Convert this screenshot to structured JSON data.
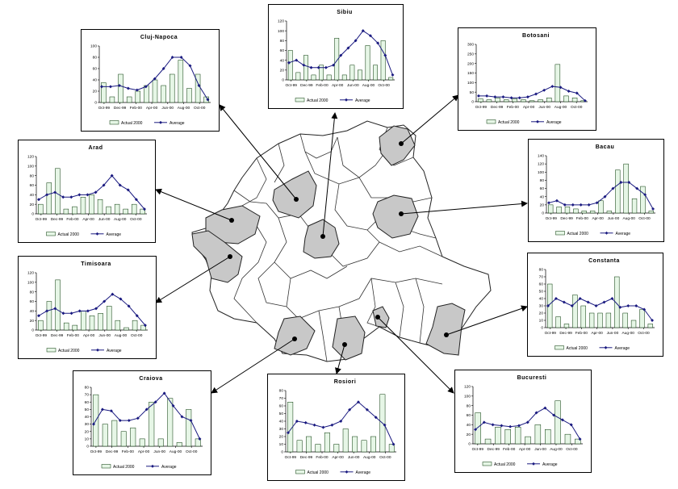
{
  "figure": {
    "legend_bar_label": "Actual 2000",
    "legend_line_label": "Average",
    "bar_color": "#e6f6e6",
    "bar_stroke": "#003300",
    "line_color": "#1a1a80",
    "region_fill": "#c8c8c8",
    "map_stroke": "#222222"
  },
  "chart_data": [
    {
      "id": "sibiu",
      "type": "bar",
      "title": "Sibiu",
      "x_tick_labels": [
        "Oct-99",
        "Dec-99",
        "Feb-00",
        "Apr-00",
        "Jun-00",
        "Aug-00",
        "Oct-00"
      ],
      "ylim": [
        0,
        120
      ],
      "y_ticks": [
        0,
        20,
        40,
        60,
        80,
        100,
        120
      ],
      "series": [
        {
          "name": "Actual 2000",
          "kind": "bar",
          "values": [
            60,
            15,
            50,
            10,
            30,
            10,
            85,
            10,
            30,
            20,
            70,
            30,
            80,
            5
          ]
        },
        {
          "name": "Average",
          "kind": "line",
          "values": [
            35,
            40,
            30,
            25,
            25,
            25,
            30,
            50,
            65,
            80,
            100,
            90,
            75,
            50,
            10
          ]
        }
      ]
    },
    {
      "id": "cluj-napoca",
      "type": "bar",
      "title": "Cluj-Napoca",
      "x_tick_labels": [
        "Oct-99",
        "Dec-99",
        "Feb-00",
        "Apr-00",
        "Jun-00",
        "Aug-00",
        "Oct-00"
      ],
      "ylim": [
        0,
        100
      ],
      "y_ticks": [
        0,
        20,
        40,
        60,
        80,
        100
      ],
      "series": [
        {
          "name": "Actual 2000",
          "kind": "bar",
          "values": [
            35,
            10,
            50,
            10,
            20,
            30,
            40,
            30,
            50,
            75,
            25,
            50,
            10
          ]
        },
        {
          "name": "Average",
          "kind": "line",
          "values": [
            28,
            28,
            30,
            25,
            22,
            28,
            42,
            60,
            80,
            80,
            65,
            30,
            5
          ]
        }
      ]
    },
    {
      "id": "botosani",
      "type": "bar",
      "title": "Botosani",
      "x_tick_labels": [
        "Oct-99",
        "Dec-99",
        "Feb-00",
        "Apr-00",
        "Jun-00",
        "Aug-00",
        "Oct-00"
      ],
      "ylim": [
        0,
        300
      ],
      "y_ticks": [
        0,
        50,
        100,
        150,
        200,
        250,
        300
      ],
      "series": [
        {
          "name": "Actual 2000",
          "kind": "bar",
          "values": [
            15,
            10,
            20,
            10,
            15,
            10,
            5,
            10,
            20,
            195,
            30,
            20,
            5
          ]
        },
        {
          "name": "Average",
          "kind": "line",
          "values": [
            30,
            30,
            25,
            25,
            20,
            20,
            25,
            40,
            60,
            80,
            75,
            55,
            45,
            5
          ]
        }
      ]
    },
    {
      "id": "arad",
      "type": "bar",
      "title": "Arad",
      "x_tick_labels": [
        "Oct-99",
        "Dec-99",
        "Feb-00",
        "Apr-00",
        "Jun-00",
        "Aug-00",
        "Oct-00"
      ],
      "ylim": [
        0,
        120
      ],
      "y_ticks": [
        0,
        20,
        40,
        60,
        80,
        100,
        120
      ],
      "series": [
        {
          "name": "Actual 2000",
          "kind": "bar",
          "values": [
            20,
            65,
            95,
            10,
            15,
            35,
            40,
            30,
            15,
            20,
            10,
            20,
            10
          ]
        },
        {
          "name": "Average",
          "kind": "line",
          "values": [
            30,
            40,
            45,
            35,
            35,
            40,
            40,
            45,
            60,
            80,
            60,
            50,
            30,
            10
          ]
        }
      ]
    },
    {
      "id": "bacau",
      "type": "bar",
      "title": "Bacau",
      "x_tick_labels": [
        "Oct-99",
        "Dec-99",
        "Feb-00",
        "Apr-00",
        "Jun-00",
        "Aug-00",
        "Oct-00"
      ],
      "ylim": [
        0,
        140
      ],
      "y_ticks": [
        0,
        20,
        40,
        60,
        80,
        100,
        120,
        140
      ],
      "series": [
        {
          "name": "Actual 2000",
          "kind": "bar",
          "values": [
            20,
            15,
            15,
            10,
            5,
            5,
            30,
            5,
            105,
            120,
            35,
            65,
            5
          ]
        },
        {
          "name": "Average",
          "kind": "line",
          "values": [
            25,
            30,
            20,
            20,
            20,
            20,
            25,
            40,
            60,
            75,
            75,
            60,
            45,
            10
          ]
        }
      ]
    },
    {
      "id": "timisoara",
      "type": "bar",
      "title": "Timisoara",
      "x_tick_labels": [
        "Oct-99",
        "Dec-99",
        "Feb-00",
        "Apr-00",
        "Jun-00",
        "Aug-00",
        "Oct-00"
      ],
      "ylim": [
        0,
        120
      ],
      "y_ticks": [
        0,
        20,
        40,
        60,
        80,
        100,
        120
      ],
      "series": [
        {
          "name": "Actual 2000",
          "kind": "bar",
          "values": [
            20,
            60,
            105,
            15,
            10,
            40,
            30,
            35,
            50,
            20,
            5,
            20,
            10
          ]
        },
        {
          "name": "Average",
          "kind": "line",
          "values": [
            30,
            40,
            45,
            35,
            35,
            40,
            40,
            45,
            60,
            75,
            65,
            50,
            30,
            10
          ]
        }
      ]
    },
    {
      "id": "constanta",
      "type": "bar",
      "title": "Constanta",
      "x_tick_labels": [
        "Oct-99",
        "Dec-99",
        "Feb-00",
        "Apr-00",
        "Jun-00",
        "Aug-00",
        "Oct-00"
      ],
      "ylim": [
        0,
        80
      ],
      "y_ticks": [
        0,
        10,
        20,
        30,
        40,
        50,
        60,
        70,
        80
      ],
      "series": [
        {
          "name": "Actual 2000",
          "kind": "bar",
          "values": [
            60,
            15,
            5,
            45,
            30,
            20,
            20,
            20,
            70,
            20,
            10,
            25,
            5
          ]
        },
        {
          "name": "Average",
          "kind": "line",
          "values": [
            30,
            40,
            35,
            30,
            40,
            35,
            30,
            35,
            40,
            28,
            30,
            30,
            25,
            10
          ]
        }
      ]
    },
    {
      "id": "craiova",
      "type": "bar",
      "title": "Craiova",
      "x_tick_labels": [
        "Oct-99",
        "Dec-99",
        "Feb-00",
        "Apr-00",
        "Jun-00",
        "Aug-00",
        "Oct-00"
      ],
      "ylim": [
        0,
        80
      ],
      "y_ticks": [
        0,
        10,
        20,
        30,
        40,
        50,
        60,
        70,
        80
      ],
      "series": [
        {
          "name": "Actual 2000",
          "kind": "bar",
          "values": [
            70,
            30,
            35,
            20,
            25,
            10,
            60,
            10,
            65,
            5,
            50,
            10
          ]
        },
        {
          "name": "Average",
          "kind": "line",
          "values": [
            30,
            50,
            48,
            35,
            35,
            38,
            50,
            60,
            72,
            55,
            40,
            35,
            10
          ]
        }
      ]
    },
    {
      "id": "rosiori",
      "type": "bar",
      "title": "Rosiori",
      "x_tick_labels": [
        "Oct-99",
        "Dec-99",
        "Feb-00",
        "Apr-00",
        "Jun-00",
        "Aug-00",
        "Oct-00"
      ],
      "ylim": [
        0,
        80
      ],
      "y_ticks": [
        0,
        10,
        20,
        30,
        40,
        50,
        60,
        70,
        80
      ],
      "series": [
        {
          "name": "Actual 2000",
          "kind": "bar",
          "values": [
            65,
            15,
            20,
            10,
            25,
            10,
            30,
            20,
            15,
            20,
            75,
            10
          ]
        },
        {
          "name": "Average",
          "kind": "line",
          "values": [
            25,
            40,
            38,
            35,
            32,
            35,
            40,
            55,
            65,
            55,
            45,
            35,
            10
          ]
        }
      ]
    },
    {
      "id": "bucuresti",
      "type": "bar",
      "title": "Bucuresti",
      "x_tick_labels": [
        "Oct-99",
        "Dec-99",
        "Feb-00",
        "Apr-00",
        "Jun-00",
        "Aug-00",
        "Oct-00"
      ],
      "ylim": [
        0,
        120
      ],
      "y_ticks": [
        0,
        20,
        40,
        60,
        80,
        100,
        120
      ],
      "series": [
        {
          "name": "Actual 2000",
          "kind": "bar",
          "values": [
            65,
            10,
            35,
            30,
            35,
            15,
            40,
            30,
            90,
            20,
            10
          ]
        },
        {
          "name": "Average",
          "kind": "line",
          "values": [
            30,
            45,
            40,
            38,
            36,
            38,
            45,
            65,
            75,
            60,
            50,
            40,
            10
          ]
        }
      ]
    }
  ]
}
